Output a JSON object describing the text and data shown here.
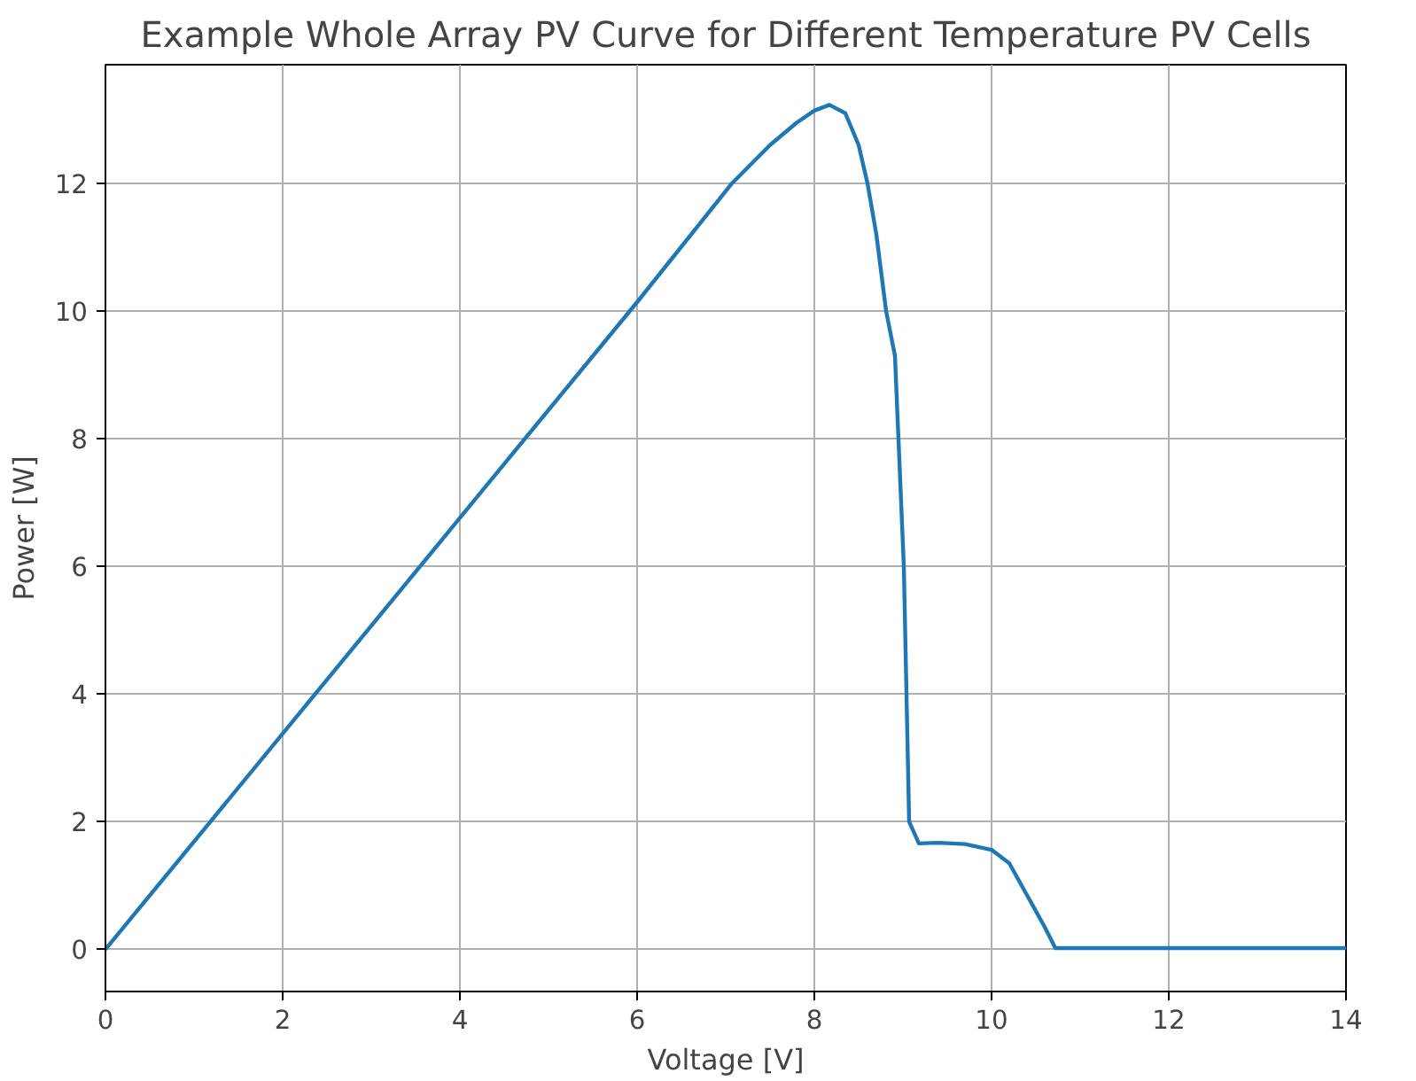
{
  "chart_data": {
    "type": "line",
    "title": "Example Whole Array PV Curve for Different Temperature PV Cells",
    "xlabel": "Voltage [V]",
    "ylabel": "Power [W]",
    "xlim": [
      0,
      14
    ],
    "ylim": [
      -0.66,
      13.86
    ],
    "xticks": [
      0,
      2,
      4,
      6,
      8,
      10,
      12,
      14
    ],
    "yticks": [
      0,
      2,
      4,
      6,
      8,
      10,
      12
    ],
    "grid": true,
    "series": [
      {
        "color": "#1f77b4",
        "x": [
          0,
          6,
          7.07,
          7.5,
          7.8,
          8.0,
          8.17,
          8.35,
          8.5,
          8.6,
          8.7,
          8.81,
          8.91,
          9.01,
          9.07,
          9.18,
          9.4,
          9.7,
          10.0,
          10.2,
          10.4,
          10.6,
          10.72,
          14
        ],
        "values": [
          0,
          10.14,
          12,
          12.6,
          12.95,
          13.14,
          13.23,
          13.1,
          12.6,
          12,
          11.2,
          10,
          9.3,
          6,
          2,
          1.66,
          1.67,
          1.65,
          1.56,
          1.35,
          0.85,
          0.35,
          0.02,
          0.02
        ]
      }
    ]
  }
}
